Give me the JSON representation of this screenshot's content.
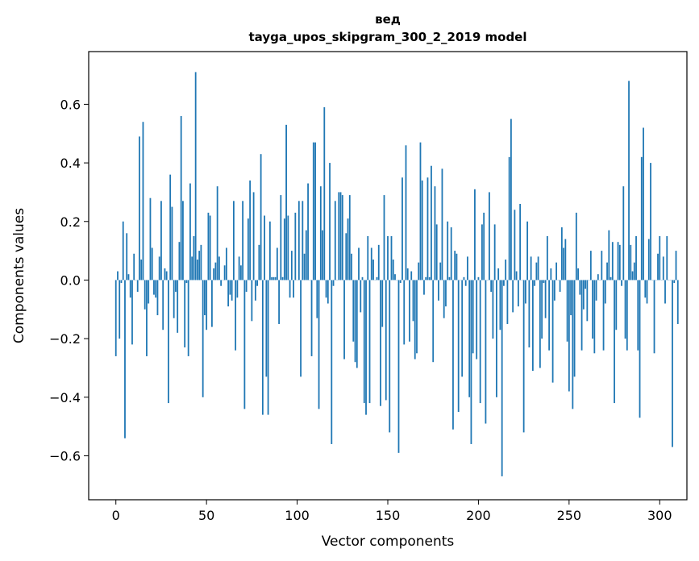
{
  "chart_data": {
    "type": "bar",
    "title": "вед",
    "subtitle": "tayga_upos_skipgram_300_2_2019 model",
    "xlabel": "Vector components",
    "ylabel": "Components values",
    "xlim": [
      -15,
      315
    ],
    "ylim": [
      -0.75,
      0.78
    ],
    "xticks": [
      0,
      50,
      100,
      150,
      200,
      250,
      300
    ],
    "yticks": [
      -0.6,
      -0.4,
      -0.2,
      0.0,
      0.2,
      0.4,
      0.6
    ],
    "ytick_labels": [
      "−0.6",
      "−0.4",
      "−0.2",
      "0.0",
      "0.2",
      "0.4",
      "0.6"
    ],
    "bar_color": "#1f77b4",
    "grid": false,
    "values": [
      -0.26,
      0.03,
      -0.2,
      -0.01,
      0.2,
      -0.54,
      0.16,
      0.02,
      -0.06,
      -0.22,
      0.09,
      0.0,
      -0.04,
      0.49,
      0.07,
      0.54,
      -0.1,
      -0.26,
      -0.08,
      0.28,
      0.11,
      -0.05,
      -0.06,
      -0.12,
      0.08,
      0.27,
      -0.17,
      0.04,
      0.03,
      -0.42,
      0.36,
      0.25,
      -0.13,
      -0.04,
      -0.18,
      0.13,
      0.56,
      0.27,
      -0.23,
      -0.01,
      -0.26,
      0.33,
      0.08,
      0.15,
      0.71,
      0.07,
      0.1,
      0.12,
      -0.4,
      -0.12,
      -0.17,
      0.23,
      0.22,
      -0.16,
      0.04,
      0.06,
      0.32,
      0.08,
      -0.02,
      0.0,
      0.05,
      0.11,
      -0.09,
      -0.05,
      -0.07,
      0.27,
      -0.24,
      -0.06,
      0.08,
      0.05,
      0.27,
      -0.44,
      -0.04,
      0.21,
      0.34,
      -0.14,
      0.3,
      -0.07,
      -0.02,
      0.12,
      0.43,
      -0.46,
      0.22,
      -0.33,
      -0.46,
      0.2,
      0.01,
      0.01,
      0.01,
      0.11,
      -0.15,
      0.29,
      0.01,
      0.21,
      0.53,
      0.22,
      -0.06,
      0.1,
      -0.06,
      0.23,
      0.0,
      0.27,
      -0.33,
      0.27,
      0.09,
      0.17,
      0.33,
      0.0,
      -0.26,
      0.47,
      0.47,
      -0.13,
      -0.44,
      0.32,
      0.17,
      0.59,
      -0.06,
      -0.08,
      0.4,
      -0.56,
      -0.02,
      0.27,
      0.0,
      0.3,
      0.3,
      0.29,
      -0.27,
      0.16,
      0.21,
      0.29,
      0.09,
      -0.21,
      -0.28,
      -0.3,
      0.11,
      -0.11,
      0.01,
      -0.42,
      -0.46,
      0.15,
      -0.42,
      0.11,
      0.07,
      0.0,
      0.01,
      0.12,
      -0.43,
      -0.16,
      0.29,
      -0.41,
      0.15,
      -0.52,
      0.15,
      0.07,
      0.02,
      0.0,
      -0.59,
      -0.01,
      0.35,
      -0.22,
      0.46,
      0.04,
      -0.21,
      0.03,
      -0.14,
      -0.27,
      -0.25,
      0.06,
      0.47,
      0.34,
      -0.05,
      0.01,
      0.35,
      0.01,
      0.39,
      -0.28,
      0.32,
      0.19,
      -0.07,
      0.06,
      0.38,
      -0.13,
      -0.09,
      0.2,
      0.01,
      0.18,
      -0.51,
      0.1,
      0.09,
      -0.45,
      0.0,
      -0.33,
      0.01,
      -0.02,
      0.08,
      -0.4,
      -0.56,
      -0.25,
      0.31,
      -0.27,
      0.01,
      -0.42,
      0.19,
      0.23,
      -0.49,
      0.0,
      0.3,
      -0.04,
      -0.2,
      0.19,
      -0.4,
      0.04,
      -0.17,
      -0.67,
      -0.02,
      0.07,
      -0.15,
      0.42,
      0.55,
      -0.11,
      0.24,
      0.03,
      -0.09,
      0.26,
      0.0,
      -0.52,
      -0.08,
      0.2,
      -0.23,
      0.08,
      -0.31,
      -0.02,
      0.06,
      0.08,
      -0.3,
      -0.2,
      -0.01,
      -0.13,
      0.15,
      -0.24,
      0.04,
      -0.35,
      -0.07,
      0.06,
      0.0,
      -0.04,
      0.18,
      0.11,
      0.14,
      -0.21,
      -0.38,
      -0.12,
      -0.44,
      -0.33,
      0.23,
      0.04,
      -0.05,
      -0.24,
      -0.1,
      -0.03,
      -0.14,
      0.0,
      0.1,
      -0.2,
      -0.25,
      -0.07,
      0.02,
      0.0,
      0.1,
      -0.24,
      -0.08,
      0.06,
      0.17,
      0.01,
      0.13,
      -0.42,
      -0.17,
      0.13,
      0.12,
      -0.02,
      0.32,
      -0.2,
      -0.24,
      0.68,
      0.12,
      0.03,
      0.06,
      0.15,
      -0.24,
      -0.47,
      0.42,
      0.52,
      -0.06,
      -0.08,
      0.14,
      0.4,
      0.0,
      -0.25,
      0.0,
      0.09,
      0.15,
      0.0,
      0.08,
      -0.08,
      0.15,
      0.0,
      0.0,
      -0.57,
      -0.01,
      0.1,
      -0.15
    ]
  }
}
